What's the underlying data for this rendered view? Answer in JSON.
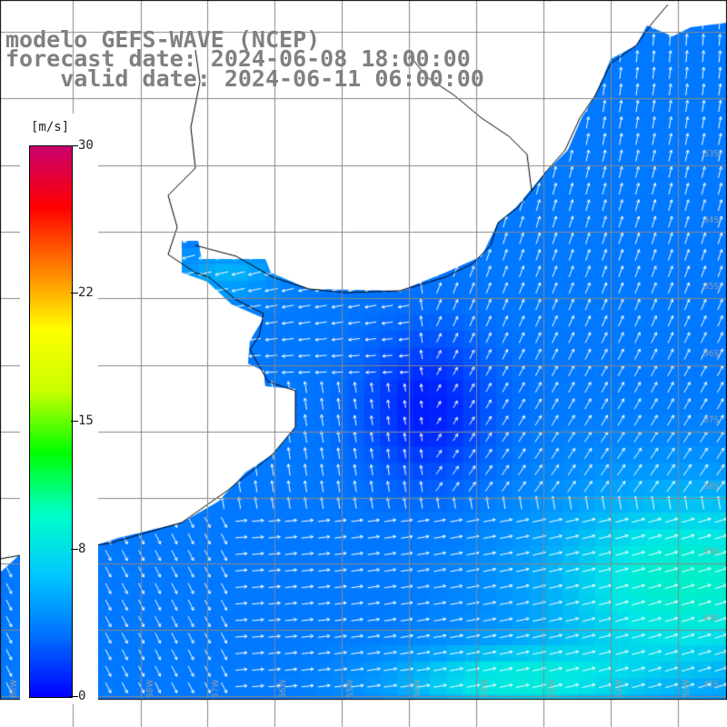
{
  "title": {
    "line1": "modelo GEFS-WAVE (NCEP)",
    "line2": "forecast date: 2024-06-08 18:00:00",
    "line3": "    valid date: 2024-06-11 06:00:00"
  },
  "colorbar": {
    "unit": "[m/s]",
    "ticks": [
      {
        "label": "30",
        "value": 30
      },
      {
        "label": "22",
        "value": 22
      },
      {
        "label": "15",
        "value": 15
      },
      {
        "label": "8",
        "value": 8
      },
      {
        "label": "0",
        "value": 0
      }
    ],
    "colors": [
      "#0000ff",
      "#0070ff",
      "#00c8ff",
      "#00ffc8",
      "#00ff00",
      "#c8ff00",
      "#ffff00",
      "#ff8000",
      "#ff0000",
      "#c8006e"
    ]
  },
  "grid_labels": {
    "right": [
      "33S",
      "34S",
      "35S",
      "36S",
      "37S",
      "38S",
      "39S",
      "40S",
      "41S"
    ],
    "bottom": [
      "60W",
      "59W",
      "58W",
      "57W",
      "56W",
      "55W",
      "54W",
      "53W",
      "52W",
      "51W",
      "50W"
    ]
  }
}
